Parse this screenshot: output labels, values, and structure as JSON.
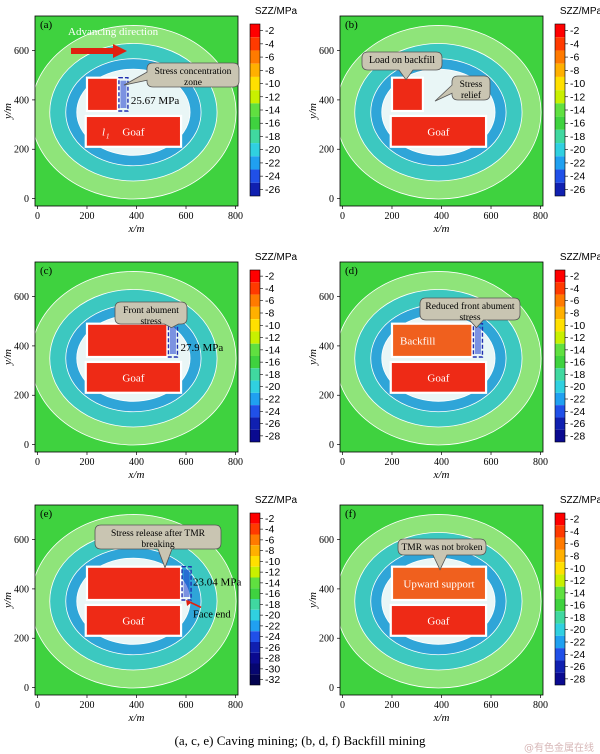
{
  "figure": {
    "caption": "(a, c, e) Caving mining; (b, d, f) Backfill mining",
    "watermark": "@有色金属在线"
  },
  "colors": {
    "background_green": "#3fd23f",
    "ring_light": "#8fe47a",
    "ring_cyan": "#3cc8c0",
    "ring_blue": "#2fa5d8",
    "goaf_red": "#ee2a16",
    "backfill_orange": "#f0601e",
    "callout_fill": "#c9c5b2",
    "arrow_red": "#e02010"
  },
  "chart_data": [
    {
      "type": "heatmap",
      "panel": "(a)",
      "xlabel": "x/m",
      "ylabel": "y/m",
      "xticks": [
        0,
        200,
        400,
        600,
        800
      ],
      "yticks": [
        0,
        200,
        400,
        600
      ],
      "xlim": [
        -10,
        810
      ],
      "ylim": [
        -30,
        740
      ],
      "colorbar_title": "SZZ/MPa",
      "colorbar_ticks": [
        -2,
        -4,
        -6,
        -8,
        -10,
        -12,
        -14,
        -16,
        -18,
        -20,
        -22,
        -24,
        -26
      ],
      "colorbar_colors": [
        "#ff0000",
        "#ff3a00",
        "#ff7a00",
        "#ffb000",
        "#ffe000",
        "#c8f000",
        "#60e040",
        "#3fd23f",
        "#40d8a0",
        "#30d0e0",
        "#20a0f0",
        "#2050e8",
        "#1020b0"
      ],
      "regions": [
        {
          "label": "Goaf",
          "x": [
            195,
            580
          ],
          "y": [
            210,
            335
          ]
        },
        {
          "label": "",
          "x": [
            200,
            325
          ],
          "y": [
            355,
            490
          ]
        }
      ],
      "annotations": [
        {
          "text": "Advancing direction"
        },
        {
          "text": "Stress concentration zone"
        },
        {
          "text": "25.67 MPa"
        },
        {
          "text": "l1"
        }
      ]
    },
    {
      "type": "heatmap",
      "panel": "(b)",
      "xlabel": "x/m",
      "ylabel": "y/m",
      "xticks": [
        0,
        200,
        400,
        600,
        800
      ],
      "yticks": [
        0,
        200,
        400,
        600
      ],
      "xlim": [
        -10,
        810
      ],
      "ylim": [
        -30,
        740
      ],
      "colorbar_title": "SZZ/MPa",
      "colorbar_ticks": [
        -2,
        -4,
        -6,
        -8,
        -10,
        -12,
        -14,
        -16,
        -18,
        -20,
        -22,
        -24,
        -26
      ],
      "colorbar_colors": [
        "#ff0000",
        "#ff3a00",
        "#ff7a00",
        "#ffb000",
        "#ffe000",
        "#c8f000",
        "#60e040",
        "#3fd23f",
        "#40d8a0",
        "#30d0e0",
        "#20a0f0",
        "#2050e8",
        "#1020b0"
      ],
      "regions": [
        {
          "label": "Goaf",
          "x": [
            195,
            580
          ],
          "y": [
            210,
            335
          ]
        },
        {
          "label": "",
          "x": [
            200,
            325
          ],
          "y": [
            355,
            490
          ]
        }
      ],
      "annotations": [
        {
          "text": "Load on backfill"
        },
        {
          "text": "Stress relief"
        }
      ]
    },
    {
      "type": "heatmap",
      "panel": "(c)",
      "xlabel": "x/m",
      "ylabel": "y/m",
      "xticks": [
        0,
        200,
        400,
        600,
        800
      ],
      "yticks": [
        0,
        200,
        400,
        600
      ],
      "xlim": [
        -10,
        810
      ],
      "ylim": [
        -30,
        740
      ],
      "colorbar_title": "SZZ/MPa",
      "colorbar_ticks": [
        -2,
        -4,
        -6,
        -8,
        -10,
        -12,
        -14,
        -16,
        -18,
        -20,
        -22,
        -24,
        -26,
        -28
      ],
      "colorbar_colors": [
        "#ff0000",
        "#ff3a00",
        "#ff7a00",
        "#ffb000",
        "#ffe000",
        "#c8f000",
        "#60e040",
        "#3fd23f",
        "#40d8a0",
        "#30d0e0",
        "#20a0f0",
        "#2050e8",
        "#1020b0",
        "#0a0a90"
      ],
      "regions": [
        {
          "label": "Goaf",
          "x": [
            195,
            580
          ],
          "y": [
            210,
            335
          ]
        },
        {
          "label": "",
          "x": [
            200,
            525
          ],
          "y": [
            355,
            490
          ]
        }
      ],
      "annotations": [
        {
          "text": "Front abument stress"
        },
        {
          "text": "27.9 MPa"
        }
      ]
    },
    {
      "type": "heatmap",
      "panel": "(d)",
      "xlabel": "x/m",
      "ylabel": "y/m",
      "xticks": [
        0,
        200,
        400,
        600,
        800
      ],
      "yticks": [
        0,
        200,
        400,
        600
      ],
      "xlim": [
        -10,
        810
      ],
      "ylim": [
        -30,
        740
      ],
      "colorbar_title": "SZZ/MPa",
      "colorbar_ticks": [
        -2,
        -4,
        -6,
        -8,
        -10,
        -12,
        -14,
        -16,
        -18,
        -20,
        -22,
        -24,
        -26,
        -28
      ],
      "colorbar_colors": [
        "#ff0000",
        "#ff3a00",
        "#ff7a00",
        "#ffb000",
        "#ffe000",
        "#c8f000",
        "#60e040",
        "#3fd23f",
        "#40d8a0",
        "#30d0e0",
        "#20a0f0",
        "#2050e8",
        "#1020b0",
        "#0a0a90"
      ],
      "regions": [
        {
          "label": "Goaf",
          "x": [
            195,
            580
          ],
          "y": [
            210,
            335
          ]
        },
        {
          "label": "Backfill",
          "x": [
            200,
            525
          ],
          "y": [
            355,
            490
          ]
        }
      ],
      "annotations": [
        {
          "text": "Reduced front abument stress"
        }
      ]
    },
    {
      "type": "heatmap",
      "panel": "(e)",
      "xlabel": "x/m",
      "ylabel": "y/m",
      "xticks": [
        0,
        200,
        400,
        600,
        800
      ],
      "yticks": [
        0,
        200,
        400,
        600
      ],
      "xlim": [
        -10,
        810
      ],
      "ylim": [
        -30,
        740
      ],
      "colorbar_title": "SZZ/MPa",
      "colorbar_ticks": [
        -2,
        -4,
        -6,
        -8,
        -10,
        -12,
        -14,
        -16,
        -18,
        -20,
        -22,
        -24,
        -26,
        -28,
        -30,
        -32
      ],
      "colorbar_colors": [
        "#ff0000",
        "#ff3a00",
        "#ff7a00",
        "#ffb000",
        "#ffe000",
        "#c8f000",
        "#60e040",
        "#3fd23f",
        "#40d8a0",
        "#30d0e0",
        "#20a0f0",
        "#2050e8",
        "#1020b0",
        "#0a0a90",
        "#060670",
        "#030350"
      ],
      "regions": [
        {
          "label": "Goaf",
          "x": [
            195,
            580
          ],
          "y": [
            210,
            335
          ]
        },
        {
          "label": "",
          "x": [
            200,
            580
          ],
          "y": [
            355,
            490
          ]
        }
      ],
      "annotations": [
        {
          "text": "Stress release after TMR breaking"
        },
        {
          "text": "23.04 MPa"
        },
        {
          "text": "Face end"
        }
      ]
    },
    {
      "type": "heatmap",
      "panel": "(f)",
      "xlabel": "x/m",
      "ylabel": "y/m",
      "xticks": [
        0,
        200,
        400,
        600,
        800
      ],
      "yticks": [
        0,
        200,
        400,
        600
      ],
      "xlim": [
        -10,
        810
      ],
      "ylim": [
        -30,
        740
      ],
      "colorbar_title": "SZZ/MPa",
      "colorbar_ticks": [
        -2,
        -4,
        -6,
        -8,
        -10,
        -12,
        -14,
        -16,
        -18,
        -20,
        -22,
        -24,
        -26,
        -28
      ],
      "colorbar_colors": [
        "#ff0000",
        "#ff3a00",
        "#ff7a00",
        "#ffb000",
        "#ffe000",
        "#c8f000",
        "#60e040",
        "#3fd23f",
        "#40d8a0",
        "#30d0e0",
        "#20a0f0",
        "#2050e8",
        "#1020b0",
        "#0a0a90"
      ],
      "regions": [
        {
          "label": "Goaf",
          "x": [
            195,
            580
          ],
          "y": [
            210,
            335
          ]
        },
        {
          "label": "Upward support",
          "x": [
            200,
            580
          ],
          "y": [
            355,
            490
          ]
        }
      ],
      "annotations": [
        {
          "text": "TMR was not broken"
        }
      ]
    }
  ]
}
